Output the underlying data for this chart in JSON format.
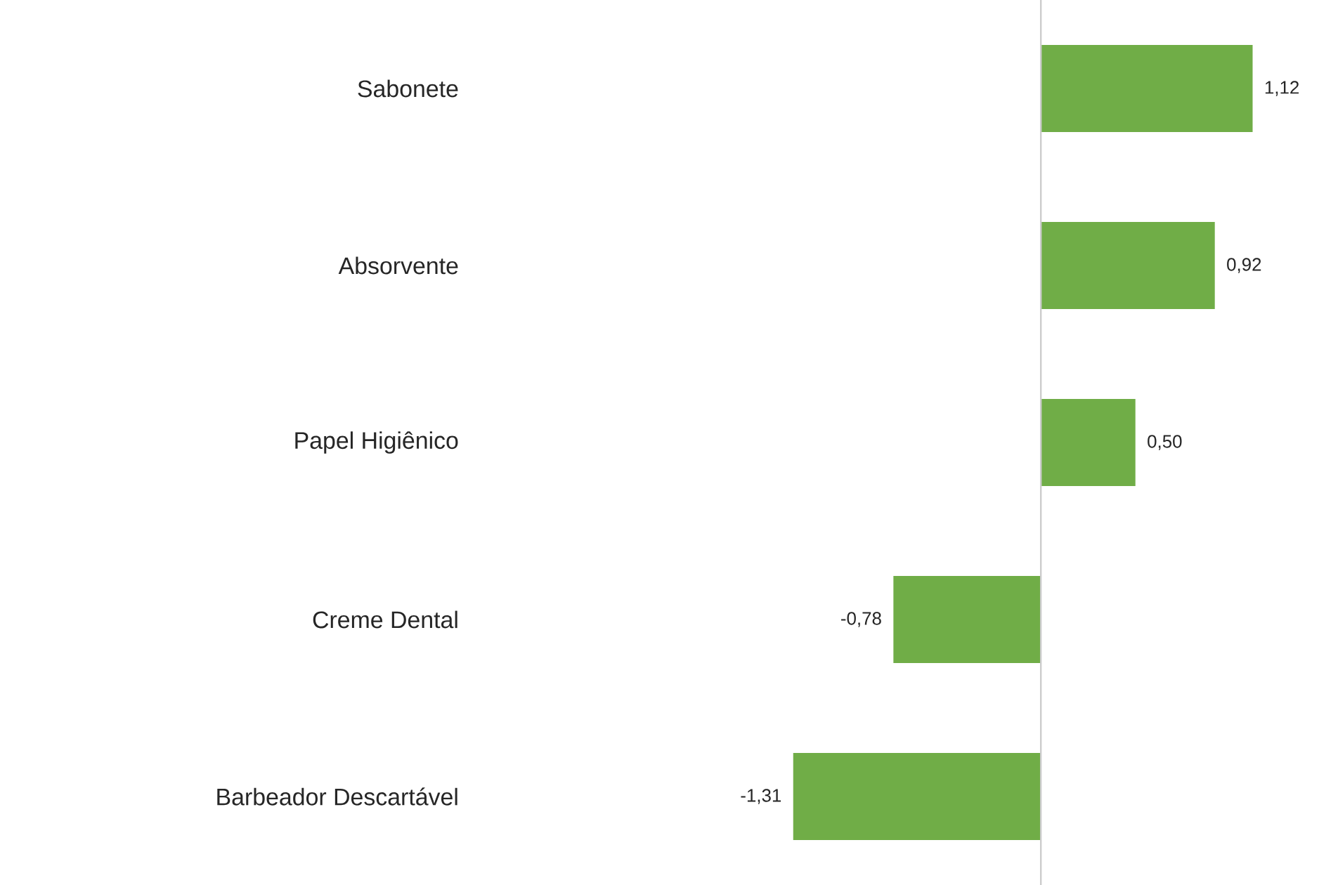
{
  "chart_data": {
    "type": "bar",
    "orientation": "horizontal",
    "categories": [
      "Sabonete",
      "Absorvente",
      "Papel Higiênico",
      "Creme Dental",
      "Barbeador Descartável"
    ],
    "values": [
      1.12,
      0.92,
      0.5,
      -0.78,
      -1.31
    ],
    "value_labels": [
      "1,12",
      "0,92",
      "0,50",
      "-0,78",
      "-1,31"
    ],
    "color": "#70ad47"
  }
}
